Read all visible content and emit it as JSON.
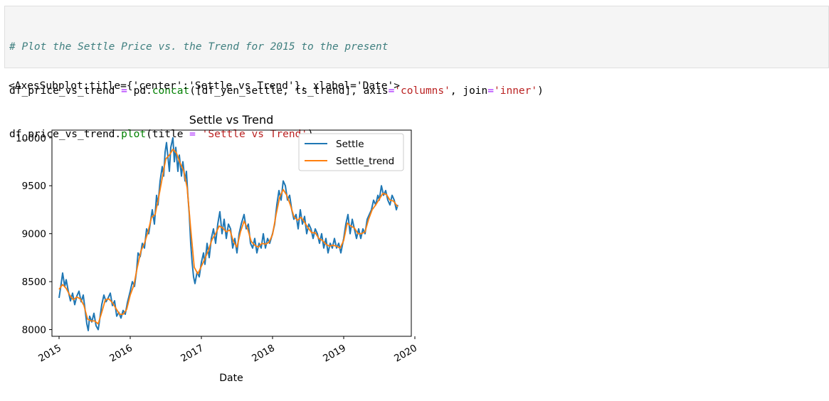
{
  "code_cell": {
    "comment": "# Plot the Settle Price vs. the Trend for 2015 to the present",
    "line2": {
      "var": "df_price_vs_trend",
      "assign": " = ",
      "mod": "pd.",
      "func": "concat",
      "args_a": "([df_yen_settle, ts_trend], axis",
      "eq1": "=",
      "str1": "'columns'",
      "args_b": ", join",
      "eq2": "=",
      "str2": "'inner'",
      "close": ")"
    },
    "line3": {
      "obj": "df_price_vs_trend.",
      "func": "plot",
      "args_a": "(title ",
      "eq": "=",
      "sp": " ",
      "str": "'Settle vs Trend'",
      "close": ")"
    }
  },
  "output_text": "<AxesSubplot:title={'center':'Settle vs Trend'}, xlabel='Date'>",
  "chart_data": {
    "type": "line",
    "title": "Settle vs Trend",
    "xlabel": "Date",
    "ylabel": "",
    "xlim": [
      2014.9,
      2019.95
    ],
    "ylim": [
      7930,
      10080
    ],
    "xticks": [
      2015,
      2016,
      2017,
      2018,
      2019,
      2020
    ],
    "xtick_labels": [
      "2015",
      "2016",
      "2017",
      "2018",
      "2019",
      "2020"
    ],
    "yticks": [
      8000,
      8500,
      9000,
      9500,
      10000
    ],
    "ytick_labels": [
      "8000",
      "8500",
      "9000",
      "9500",
      "10000"
    ],
    "grid": false,
    "legend": "top-right",
    "series": [
      {
        "name": "Settle",
        "color": "#1f77b4",
        "points": [
          [
            2015.0,
            8330
          ],
          [
            2015.03,
            8480
          ],
          [
            2015.05,
            8590
          ],
          [
            2015.08,
            8450
          ],
          [
            2015.1,
            8520
          ],
          [
            2015.13,
            8400
          ],
          [
            2015.16,
            8300
          ],
          [
            2015.19,
            8380
          ],
          [
            2015.22,
            8260
          ],
          [
            2015.25,
            8350
          ],
          [
            2015.28,
            8400
          ],
          [
            2015.31,
            8290
          ],
          [
            2015.34,
            8360
          ],
          [
            2015.37,
            8180
          ],
          [
            2015.39,
            8060
          ],
          [
            2015.41,
            7990
          ],
          [
            2015.43,
            8140
          ],
          [
            2015.46,
            8080
          ],
          [
            2015.49,
            8170
          ],
          [
            2015.52,
            8040
          ],
          [
            2015.55,
            8000
          ],
          [
            2015.57,
            8100
          ],
          [
            2015.6,
            8260
          ],
          [
            2015.63,
            8360
          ],
          [
            2015.66,
            8290
          ],
          [
            2015.69,
            8330
          ],
          [
            2015.72,
            8380
          ],
          [
            2015.75,
            8250
          ],
          [
            2015.78,
            8300
          ],
          [
            2015.81,
            8140
          ],
          [
            2015.84,
            8180
          ],
          [
            2015.87,
            8120
          ],
          [
            2015.9,
            8200
          ],
          [
            2015.93,
            8160
          ],
          [
            2015.96,
            8280
          ],
          [
            2016.0,
            8400
          ],
          [
            2016.03,
            8500
          ],
          [
            2016.06,
            8450
          ],
          [
            2016.09,
            8620
          ],
          [
            2016.11,
            8800
          ],
          [
            2016.14,
            8760
          ],
          [
            2016.17,
            8900
          ],
          [
            2016.2,
            8850
          ],
          [
            2016.23,
            9050
          ],
          [
            2016.26,
            9000
          ],
          [
            2016.29,
            9150
          ],
          [
            2016.31,
            9250
          ],
          [
            2016.34,
            9100
          ],
          [
            2016.37,
            9400
          ],
          [
            2016.39,
            9300
          ],
          [
            2016.42,
            9550
          ],
          [
            2016.45,
            9700
          ],
          [
            2016.47,
            9600
          ],
          [
            2016.49,
            9850
          ],
          [
            2016.51,
            9950
          ],
          [
            2016.53,
            9800
          ],
          [
            2016.55,
            9650
          ],
          [
            2016.57,
            9900
          ],
          [
            2016.6,
            10000
          ],
          [
            2016.62,
            9750
          ],
          [
            2016.64,
            9900
          ],
          [
            2016.67,
            9650
          ],
          [
            2016.69,
            9820
          ],
          [
            2016.72,
            9600
          ],
          [
            2016.74,
            9750
          ],
          [
            2016.77,
            9550
          ],
          [
            2016.79,
            9650
          ],
          [
            2016.81,
            9400
          ],
          [
            2016.83,
            9200
          ],
          [
            2016.85,
            8900
          ],
          [
            2016.87,
            8700
          ],
          [
            2016.89,
            8550
          ],
          [
            2016.91,
            8480
          ],
          [
            2016.94,
            8600
          ],
          [
            2016.97,
            8550
          ],
          [
            2017.0,
            8700
          ],
          [
            2017.03,
            8800
          ],
          [
            2017.05,
            8680
          ],
          [
            2017.08,
            8900
          ],
          [
            2017.11,
            8750
          ],
          [
            2017.14,
            8950
          ],
          [
            2017.17,
            9050
          ],
          [
            2017.2,
            8900
          ],
          [
            2017.23,
            9100
          ],
          [
            2017.26,
            9230
          ],
          [
            2017.29,
            9000
          ],
          [
            2017.32,
            9150
          ],
          [
            2017.35,
            8950
          ],
          [
            2017.38,
            9100
          ],
          [
            2017.41,
            9050
          ],
          [
            2017.44,
            8850
          ],
          [
            2017.47,
            8950
          ],
          [
            2017.5,
            8800
          ],
          [
            2017.53,
            9000
          ],
          [
            2017.56,
            9100
          ],
          [
            2017.6,
            9200
          ],
          [
            2017.63,
            9050
          ],
          [
            2017.66,
            9100
          ],
          [
            2017.69,
            8900
          ],
          [
            2017.72,
            8850
          ],
          [
            2017.75,
            8950
          ],
          [
            2017.78,
            8800
          ],
          [
            2017.81,
            8900
          ],
          [
            2017.84,
            8850
          ],
          [
            2017.87,
            9000
          ],
          [
            2017.9,
            8850
          ],
          [
            2017.93,
            8950
          ],
          [
            2017.96,
            8900
          ],
          [
            2018.0,
            9000
          ],
          [
            2018.03,
            9100
          ],
          [
            2018.06,
            9300
          ],
          [
            2018.09,
            9450
          ],
          [
            2018.12,
            9350
          ],
          [
            2018.15,
            9550
          ],
          [
            2018.18,
            9500
          ],
          [
            2018.21,
            9350
          ],
          [
            2018.24,
            9400
          ],
          [
            2018.27,
            9250
          ],
          [
            2018.3,
            9150
          ],
          [
            2018.33,
            9200
          ],
          [
            2018.36,
            9050
          ],
          [
            2018.39,
            9250
          ],
          [
            2018.42,
            9100
          ],
          [
            2018.45,
            9180
          ],
          [
            2018.48,
            9000
          ],
          [
            2018.51,
            9100
          ],
          [
            2018.54,
            9050
          ],
          [
            2018.57,
            8950
          ],
          [
            2018.6,
            9050
          ],
          [
            2018.63,
            9000
          ],
          [
            2018.66,
            8900
          ],
          [
            2018.69,
            9000
          ],
          [
            2018.72,
            8850
          ],
          [
            2018.75,
            8950
          ],
          [
            2018.78,
            8800
          ],
          [
            2018.81,
            8900
          ],
          [
            2018.84,
            8850
          ],
          [
            2018.87,
            8950
          ],
          [
            2018.9,
            8850
          ],
          [
            2018.93,
            8900
          ],
          [
            2018.96,
            8800
          ],
          [
            2019.0,
            8950
          ],
          [
            2019.03,
            9100
          ],
          [
            2019.06,
            9200
          ],
          [
            2019.09,
            9000
          ],
          [
            2019.12,
            9150
          ],
          [
            2019.15,
            9050
          ],
          [
            2019.18,
            8950
          ],
          [
            2019.21,
            9050
          ],
          [
            2019.24,
            8950
          ],
          [
            2019.27,
            9050
          ],
          [
            2019.3,
            9000
          ],
          [
            2019.33,
            9150
          ],
          [
            2019.36,
            9200
          ],
          [
            2019.39,
            9250
          ],
          [
            2019.42,
            9350
          ],
          [
            2019.45,
            9300
          ],
          [
            2019.48,
            9400
          ],
          [
            2019.5,
            9350
          ],
          [
            2019.53,
            9500
          ],
          [
            2019.56,
            9400
          ],
          [
            2019.59,
            9450
          ],
          [
            2019.62,
            9350
          ],
          [
            2019.65,
            9300
          ],
          [
            2019.68,
            9400
          ],
          [
            2019.71,
            9350
          ],
          [
            2019.74,
            9250
          ],
          [
            2019.76,
            9300
          ]
        ]
      },
      {
        "name": "Settle_trend",
        "color": "#ff7f0e",
        "points": [
          [
            2015.0,
            8420
          ],
          [
            2015.05,
            8470
          ],
          [
            2015.1,
            8430
          ],
          [
            2015.15,
            8360
          ],
          [
            2015.2,
            8310
          ],
          [
            2015.25,
            8340
          ],
          [
            2015.3,
            8320
          ],
          [
            2015.35,
            8250
          ],
          [
            2015.4,
            8110
          ],
          [
            2015.45,
            8090
          ],
          [
            2015.5,
            8090
          ],
          [
            2015.55,
            8060
          ],
          [
            2015.6,
            8180
          ],
          [
            2015.65,
            8310
          ],
          [
            2015.7,
            8320
          ],
          [
            2015.75,
            8280
          ],
          [
            2015.8,
            8220
          ],
          [
            2015.85,
            8160
          ],
          [
            2015.9,
            8160
          ],
          [
            2015.95,
            8210
          ],
          [
            2016.0,
            8360
          ],
          [
            2016.05,
            8460
          ],
          [
            2016.1,
            8650
          ],
          [
            2016.15,
            8820
          ],
          [
            2016.2,
            8900
          ],
          [
            2016.25,
            9020
          ],
          [
            2016.3,
            9170
          ],
          [
            2016.35,
            9200
          ],
          [
            2016.4,
            9380
          ],
          [
            2016.45,
            9580
          ],
          [
            2016.5,
            9780
          ],
          [
            2016.55,
            9820
          ],
          [
            2016.6,
            9880
          ],
          [
            2016.65,
            9840
          ],
          [
            2016.7,
            9740
          ],
          [
            2016.75,
            9660
          ],
          [
            2016.8,
            9480
          ],
          [
            2016.85,
            9050
          ],
          [
            2016.9,
            8650
          ],
          [
            2016.95,
            8580
          ],
          [
            2017.0,
            8660
          ],
          [
            2017.05,
            8740
          ],
          [
            2017.1,
            8830
          ],
          [
            2017.15,
            8940
          ],
          [
            2017.2,
            9000
          ],
          [
            2017.25,
            9080
          ],
          [
            2017.3,
            9060
          ],
          [
            2017.35,
            9020
          ],
          [
            2017.4,
            9040
          ],
          [
            2017.45,
            8920
          ],
          [
            2017.5,
            8860
          ],
          [
            2017.55,
            9020
          ],
          [
            2017.6,
            9130
          ],
          [
            2017.65,
            9050
          ],
          [
            2017.7,
            8920
          ],
          [
            2017.75,
            8880
          ],
          [
            2017.8,
            8860
          ],
          [
            2017.85,
            8900
          ],
          [
            2017.9,
            8890
          ],
          [
            2017.95,
            8910
          ],
          [
            2018.0,
            8990
          ],
          [
            2018.05,
            9200
          ],
          [
            2018.1,
            9380
          ],
          [
            2018.15,
            9460
          ],
          [
            2018.2,
            9400
          ],
          [
            2018.25,
            9300
          ],
          [
            2018.3,
            9180
          ],
          [
            2018.35,
            9140
          ],
          [
            2018.4,
            9170
          ],
          [
            2018.45,
            9120
          ],
          [
            2018.5,
            9060
          ],
          [
            2018.55,
            9010
          ],
          [
            2018.6,
            9010
          ],
          [
            2018.65,
            8950
          ],
          [
            2018.7,
            8930
          ],
          [
            2018.75,
            8890
          ],
          [
            2018.8,
            8870
          ],
          [
            2018.85,
            8880
          ],
          [
            2018.9,
            8870
          ],
          [
            2018.95,
            8850
          ],
          [
            2019.0,
            8930
          ],
          [
            2019.05,
            9110
          ],
          [
            2019.1,
            9080
          ],
          [
            2019.15,
            9060
          ],
          [
            2019.2,
            9000
          ],
          [
            2019.25,
            9000
          ],
          [
            2019.3,
            9020
          ],
          [
            2019.35,
            9150
          ],
          [
            2019.4,
            9250
          ],
          [
            2019.45,
            9300
          ],
          [
            2019.5,
            9360
          ],
          [
            2019.55,
            9420
          ],
          [
            2019.6,
            9410
          ],
          [
            2019.65,
            9350
          ],
          [
            2019.7,
            9340
          ],
          [
            2019.76,
            9280
          ]
        ]
      }
    ]
  }
}
